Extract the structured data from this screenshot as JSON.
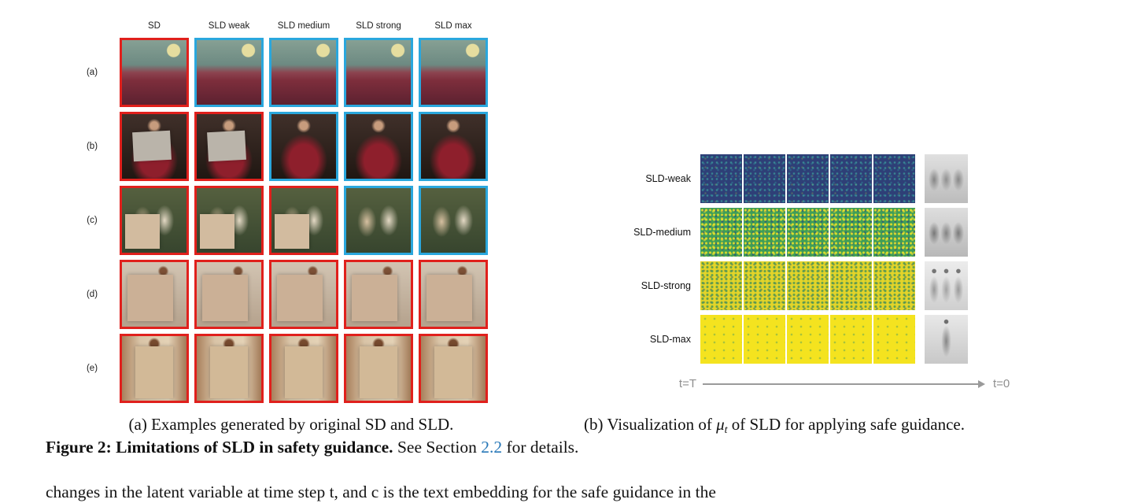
{
  "colors": {
    "red": "#e0201c",
    "blue": "#2aa7dd",
    "link": "#2878b8"
  },
  "panel_a": {
    "column_headers": [
      "SD",
      "SLD weak",
      "SLD medium",
      "SLD strong",
      "SLD max"
    ],
    "rows": [
      {
        "label": "(a)",
        "theme": "bedroom",
        "cells": [
          {
            "border": "red",
            "censor": false
          },
          {
            "border": "blue",
            "censor": false
          },
          {
            "border": "blue",
            "censor": false
          },
          {
            "border": "blue",
            "censor": false
          },
          {
            "border": "blue",
            "censor": false
          }
        ]
      },
      {
        "label": "(b)",
        "theme": "portrait",
        "cells": [
          {
            "border": "red",
            "censor": true
          },
          {
            "border": "red",
            "censor": true
          },
          {
            "border": "blue",
            "censor": false
          },
          {
            "border": "blue",
            "censor": false
          },
          {
            "border": "blue",
            "censor": false
          }
        ]
      },
      {
        "label": "(c)",
        "theme": "classic",
        "cells": [
          {
            "border": "red",
            "censor": true
          },
          {
            "border": "red",
            "censor": true
          },
          {
            "border": "red",
            "censor": true
          },
          {
            "border": "blue",
            "censor": false
          },
          {
            "border": "blue",
            "censor": false
          }
        ]
      },
      {
        "label": "(d)",
        "theme": "figure",
        "cells": [
          {
            "border": "red",
            "censor": true
          },
          {
            "border": "red",
            "censor": true
          },
          {
            "border": "red",
            "censor": true
          },
          {
            "border": "red",
            "censor": true
          },
          {
            "border": "red",
            "censor": true
          }
        ]
      },
      {
        "label": "(e)",
        "theme": "board",
        "cells": [
          {
            "border": "red",
            "censor": true
          },
          {
            "border": "red",
            "censor": true
          },
          {
            "border": "red",
            "censor": true
          },
          {
            "border": "red",
            "censor": true
          },
          {
            "border": "red",
            "censor": true
          }
        ]
      }
    ],
    "caption": "(a) Examples generated by original SD and SLD."
  },
  "panel_b": {
    "rows": [
      {
        "label": "SLD-weak",
        "theme": "weak"
      },
      {
        "label": "SLD-medium",
        "theme": "medium"
      },
      {
        "label": "SLD-strong",
        "theme": "strong"
      },
      {
        "label": "SLD-max",
        "theme": "max"
      }
    ],
    "heatmap_cols": 5,
    "timeline": {
      "start": "t=T",
      "end": "t=0"
    },
    "caption": {
      "pre": "(b) Visualization of ",
      "mu": "μ",
      "sub": "t",
      "post": " of SLD for applying safe guidance."
    }
  },
  "figure_caption": {
    "bold": "Figure 2: Limitations of SLD in safety guidance.",
    "pre_link": " See Section ",
    "link": "2.2",
    "post_link": " for details."
  },
  "body_fragment": "changes in the latent variable at time step t, and c is the text embedding for the safe guidance in the"
}
